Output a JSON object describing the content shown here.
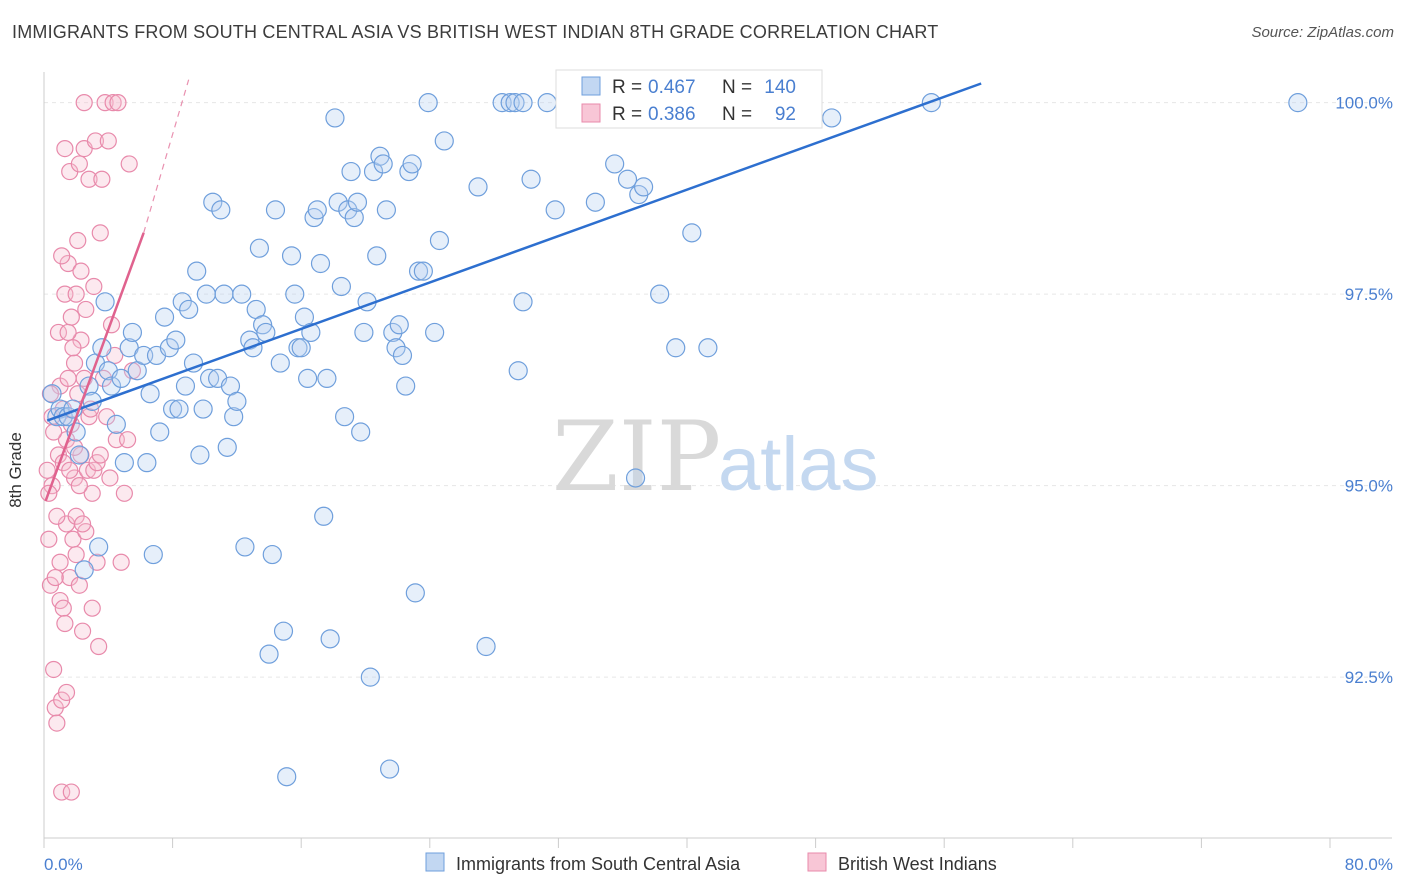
{
  "header": {
    "title": "IMMIGRANTS FROM SOUTH CENTRAL ASIA VS BRITISH WEST INDIAN 8TH GRADE CORRELATION CHART",
    "source": "Source: ZipAtlas.com"
  },
  "watermark": {
    "zip": "ZIP",
    "atlas": "atlas"
  },
  "colors": {
    "blue": "#8fb6e8",
    "blue_line": "#2d6fcf",
    "pink": "#f2a3bd",
    "pink_line": "#e0628e",
    "tick": "#4a7fd0"
  },
  "stats": [
    {
      "r_label": "R = ",
      "r": "0.467",
      "n_label": "N = ",
      "n": "140"
    },
    {
      "r_label": "R = ",
      "r": "0.386",
      "n_label": "N = ",
      "n": "92"
    }
  ],
  "chart_data": {
    "type": "scatter",
    "title": "IMMIGRANTS FROM SOUTH CENTRAL ASIA VS BRITISH WEST INDIAN 8TH GRADE CORRELATION CHART",
    "xlabel": "",
    "ylabel": "8th Grade",
    "xlim": [
      0,
      80
    ],
    "ylim": [
      90.4,
      100.4
    ],
    "x_ticks": [
      "0.0%",
      "80.0%"
    ],
    "y_ticks": [
      {
        "value": 100.0,
        "label": "100.0%"
      },
      {
        "value": 97.5,
        "label": "97.5%"
      },
      {
        "value": 95.0,
        "label": "95.0%"
      },
      {
        "value": 92.5,
        "label": "92.5%"
      }
    ],
    "grid": true,
    "legend_position": "bottom-center",
    "series": [
      {
        "name": "Immigrants from South Central Asia",
        "color": "#8fb6e8",
        "trend": {
          "x": [
            0.2,
            58.3
          ],
          "y": [
            95.85,
            100.25
          ]
        },
        "points": [
          [
            0.5,
            96.2
          ],
          [
            0.8,
            95.9
          ],
          [
            1.0,
            96.0
          ],
          [
            1.2,
            95.9
          ],
          [
            1.5,
            95.9
          ],
          [
            1.8,
            96.0
          ],
          [
            2.0,
            95.7
          ],
          [
            2.2,
            95.4
          ],
          [
            2.5,
            93.9
          ],
          [
            2.8,
            96.3
          ],
          [
            3.0,
            96.1
          ],
          [
            3.2,
            96.6
          ],
          [
            3.4,
            94.2
          ],
          [
            3.6,
            96.8
          ],
          [
            3.8,
            97.4
          ],
          [
            4.0,
            96.5
          ],
          [
            4.2,
            96.3
          ],
          [
            4.5,
            95.8
          ],
          [
            4.8,
            96.4
          ],
          [
            5.0,
            95.3
          ],
          [
            5.3,
            96.8
          ],
          [
            5.5,
            97.0
          ],
          [
            5.8,
            96.5
          ],
          [
            6.2,
            96.7
          ],
          [
            6.4,
            95.3
          ],
          [
            6.6,
            96.2
          ],
          [
            6.8,
            94.1
          ],
          [
            7.0,
            96.7
          ],
          [
            7.2,
            95.7
          ],
          [
            7.5,
            97.2
          ],
          [
            7.8,
            96.8
          ],
          [
            8.0,
            96.0
          ],
          [
            8.2,
            96.9
          ],
          [
            8.4,
            96.0
          ],
          [
            8.6,
            97.4
          ],
          [
            8.8,
            96.3
          ],
          [
            9.0,
            97.3
          ],
          [
            9.3,
            96.6
          ],
          [
            9.5,
            97.8
          ],
          [
            9.7,
            95.4
          ],
          [
            9.9,
            96.0
          ],
          [
            10.1,
            97.5
          ],
          [
            10.3,
            96.4
          ],
          [
            10.5,
            98.7
          ],
          [
            10.8,
            96.4
          ],
          [
            11.0,
            98.6
          ],
          [
            11.2,
            97.5
          ],
          [
            11.4,
            95.5
          ],
          [
            11.6,
            96.3
          ],
          [
            11.8,
            95.9
          ],
          [
            12.0,
            96.1
          ],
          [
            12.3,
            97.5
          ],
          [
            12.5,
            94.2
          ],
          [
            12.8,
            96.9
          ],
          [
            13.0,
            96.8
          ],
          [
            13.2,
            97.3
          ],
          [
            13.4,
            98.1
          ],
          [
            13.6,
            97.1
          ],
          [
            13.8,
            97.0
          ],
          [
            14.0,
            92.8
          ],
          [
            14.2,
            94.1
          ],
          [
            14.4,
            98.6
          ],
          [
            14.7,
            96.6
          ],
          [
            14.9,
            93.1
          ],
          [
            15.1,
            91.2
          ],
          [
            15.4,
            98.0
          ],
          [
            15.6,
            97.5
          ],
          [
            15.8,
            96.8
          ],
          [
            16.0,
            96.8
          ],
          [
            16.2,
            97.2
          ],
          [
            16.4,
            96.4
          ],
          [
            16.6,
            97.0
          ],
          [
            16.8,
            98.5
          ],
          [
            17.0,
            98.6
          ],
          [
            17.2,
            97.9
          ],
          [
            17.4,
            94.6
          ],
          [
            17.6,
            96.4
          ],
          [
            17.8,
            93.0
          ],
          [
            18.1,
            99.8
          ],
          [
            18.3,
            98.7
          ],
          [
            18.5,
            97.6
          ],
          [
            18.7,
            95.9
          ],
          [
            18.9,
            98.6
          ],
          [
            19.1,
            99.1
          ],
          [
            19.3,
            98.5
          ],
          [
            19.5,
            98.7
          ],
          [
            19.7,
            95.7
          ],
          [
            19.9,
            97.0
          ],
          [
            20.1,
            97.4
          ],
          [
            20.3,
            92.5
          ],
          [
            20.5,
            99.1
          ],
          [
            20.7,
            98.0
          ],
          [
            20.9,
            99.3
          ],
          [
            21.1,
            99.2
          ],
          [
            21.3,
            98.6
          ],
          [
            21.5,
            91.3
          ],
          [
            21.7,
            97.0
          ],
          [
            21.9,
            96.8
          ],
          [
            22.1,
            97.1
          ],
          [
            22.3,
            96.7
          ],
          [
            22.5,
            96.3
          ],
          [
            22.7,
            99.1
          ],
          [
            22.9,
            99.2
          ],
          [
            23.1,
            93.6
          ],
          [
            23.3,
            97.8
          ],
          [
            23.6,
            97.8
          ],
          [
            23.9,
            100.0
          ],
          [
            24.3,
            97.0
          ],
          [
            24.6,
            98.2
          ],
          [
            24.9,
            99.5
          ],
          [
            27.0,
            98.9
          ],
          [
            27.5,
            92.9
          ],
          [
            28.5,
            100.0
          ],
          [
            29.0,
            100.0
          ],
          [
            29.3,
            100.0
          ],
          [
            29.8,
            100.0
          ],
          [
            29.5,
            96.5
          ],
          [
            29.8,
            97.4
          ],
          [
            30.3,
            99.0
          ],
          [
            31.3,
            100.0
          ],
          [
            31.8,
            98.6
          ],
          [
            32.8,
            100.0
          ],
          [
            33.3,
            99.9
          ],
          [
            34.3,
            98.7
          ],
          [
            35.5,
            99.2
          ],
          [
            36.3,
            99.0
          ],
          [
            37.0,
            98.8
          ],
          [
            37.3,
            98.9
          ],
          [
            36.8,
            95.1
          ],
          [
            38.3,
            97.5
          ],
          [
            39.3,
            96.8
          ],
          [
            40.3,
            98.3
          ],
          [
            41.3,
            96.8
          ],
          [
            41.8,
            100.0
          ],
          [
            42.3,
            99.9
          ],
          [
            44.0,
            99.8
          ],
          [
            46.3,
            99.9
          ],
          [
            49.0,
            99.8
          ],
          [
            55.2,
            100.0
          ],
          [
            78.0,
            100.0
          ]
        ]
      },
      {
        "name": "British West Indians",
        "color": "#f2a3bd",
        "trend": {
          "x": [
            0.1,
            6.2
          ],
          "y": [
            94.8,
            98.3
          ]
        },
        "trend_extension": {
          "x": [
            6.2,
            9.0
          ],
          "y": [
            98.3,
            100.3
          ]
        },
        "points": [
          [
            0.2,
            95.2
          ],
          [
            0.3,
            94.3
          ],
          [
            0.4,
            93.7
          ],
          [
            0.5,
            95.9
          ],
          [
            0.5,
            95.0
          ],
          [
            0.6,
            92.6
          ],
          [
            0.7,
            92.1
          ],
          [
            0.8,
            91.9
          ],
          [
            0.9,
            95.4
          ],
          [
            1.0,
            93.5
          ],
          [
            1.0,
            96.3
          ],
          [
            1.1,
            92.2
          ],
          [
            1.1,
            91.0
          ],
          [
            1.2,
            93.4
          ],
          [
            1.2,
            95.3
          ],
          [
            1.3,
            97.5
          ],
          [
            1.3,
            99.4
          ],
          [
            1.4,
            95.6
          ],
          [
            1.4,
            94.5
          ],
          [
            1.5,
            97.9
          ],
          [
            1.5,
            96.4
          ],
          [
            1.6,
            93.8
          ],
          [
            1.6,
            99.1
          ],
          [
            1.7,
            97.2
          ],
          [
            1.7,
            95.8
          ],
          [
            1.8,
            94.3
          ],
          [
            1.9,
            96.6
          ],
          [
            1.9,
            95.1
          ],
          [
            2.0,
            97.5
          ],
          [
            2.0,
            94.6
          ],
          [
            2.1,
            98.2
          ],
          [
            2.2,
            93.7
          ],
          [
            2.2,
            99.2
          ],
          [
            2.3,
            96.9
          ],
          [
            2.3,
            95.4
          ],
          [
            2.4,
            93.1
          ],
          [
            2.5,
            99.4
          ],
          [
            2.5,
            96.4
          ],
          [
            2.6,
            97.3
          ],
          [
            2.6,
            94.4
          ],
          [
            2.7,
            95.2
          ],
          [
            2.8,
            99.0
          ],
          [
            2.8,
            95.9
          ],
          [
            2.9,
            96.0
          ],
          [
            3.0,
            93.4
          ],
          [
            3.0,
            94.9
          ],
          [
            3.1,
            97.6
          ],
          [
            3.1,
            95.2
          ],
          [
            3.2,
            99.5
          ],
          [
            3.3,
            95.3
          ],
          [
            3.3,
            94.0
          ],
          [
            3.4,
            92.9
          ],
          [
            3.5,
            95.4
          ],
          [
            3.5,
            98.3
          ],
          [
            3.6,
            99.0
          ],
          [
            3.7,
            96.4
          ],
          [
            3.8,
            100.0
          ],
          [
            3.9,
            95.9
          ],
          [
            4.0,
            99.5
          ],
          [
            4.1,
            95.1
          ],
          [
            4.2,
            97.1
          ],
          [
            4.3,
            100.0
          ],
          [
            4.4,
            96.7
          ],
          [
            4.5,
            95.6
          ],
          [
            4.6,
            100.0
          ],
          [
            4.8,
            94.0
          ],
          [
            5.0,
            94.9
          ],
          [
            5.2,
            95.6
          ],
          [
            5.3,
            99.2
          ],
          [
            5.5,
            96.5
          ],
          [
            0.3,
            94.9
          ],
          [
            0.4,
            96.2
          ],
          [
            0.6,
            95.7
          ],
          [
            0.7,
            93.8
          ],
          [
            0.8,
            94.6
          ],
          [
            0.9,
            97.0
          ],
          [
            1.0,
            94.0
          ],
          [
            1.1,
            98.0
          ],
          [
            1.2,
            96.0
          ],
          [
            1.3,
            93.2
          ],
          [
            1.4,
            92.3
          ],
          [
            1.5,
            97.0
          ],
          [
            1.6,
            95.2
          ],
          [
            1.7,
            91.0
          ],
          [
            1.8,
            96.8
          ],
          [
            1.9,
            95.5
          ],
          [
            2.0,
            94.1
          ],
          [
            2.1,
            96.2
          ],
          [
            2.2,
            95.0
          ],
          [
            2.3,
            97.8
          ],
          [
            2.4,
            94.5
          ],
          [
            2.5,
            100.0
          ]
        ]
      }
    ]
  }
}
